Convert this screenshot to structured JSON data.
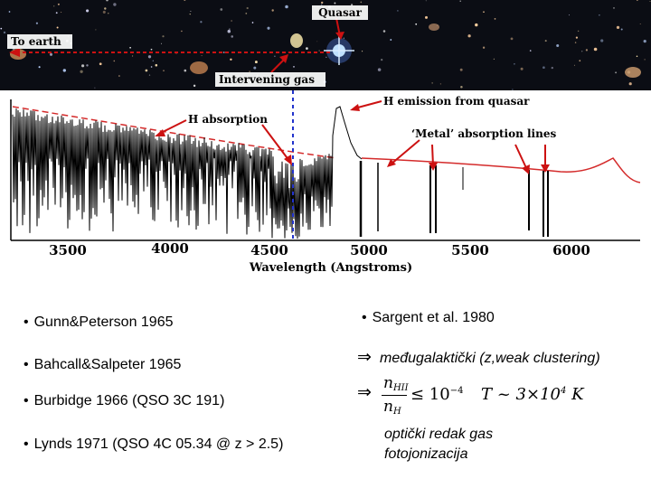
{
  "top_image": {
    "labels": {
      "quasar": "Quasar",
      "to_earth": "To earth",
      "intervening_gas": "Intervening gas"
    }
  },
  "spectrum": {
    "annotations": {
      "h_emission": "H emission from quasar",
      "h_absorption": "H absorption",
      "metal_lines": "‘Metal’ absorption lines"
    },
    "x_ticks": [
      "3500",
      "4000",
      "4500",
      "5000",
      "5500",
      "6000"
    ],
    "x_axis_label": "Wavelength (Angstroms)"
  },
  "colors": {
    "arrow_red": "#cc1111",
    "continuum_dashed": "#d42b2b",
    "gas_line_blue": "#2233cc"
  },
  "left_refs": [
    "Gunn&Peterson 1965",
    "Bahcall&Salpeter 1965",
    "Burbidge 1966 (QSO 3C 191)",
    "Lynds 1971 (QSO 4C 05.34 @ z > 2.5)"
  ],
  "right": {
    "ref": "Sargent et al. 1980",
    "implication": "međugalaktički (z,weak clustering)",
    "formula": {
      "numerator": "n",
      "numerator_sub": "HII",
      "denominator": "n",
      "denominator_sub": "H",
      "relation": "≤ 10",
      "exponent": "−4",
      "temp": "T ~ 3×10",
      "temp_exponent": "4",
      "unit": "K"
    },
    "conclusion_line1": "optički redak gas",
    "conclusion_line2": "fotojonizacija"
  }
}
